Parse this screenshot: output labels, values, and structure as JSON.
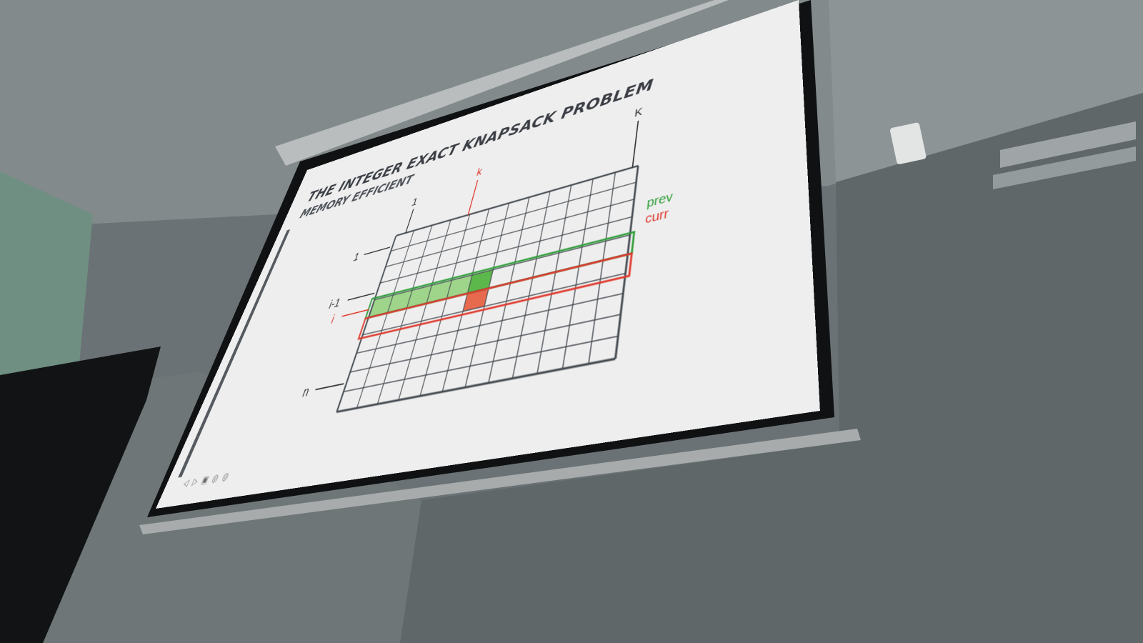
{
  "slide": {
    "title": "THE INTEGER EXACT KNAPSACK PROBLEM",
    "subtitle": "MEMORY EFFICIENT",
    "top_labels": [
      "1",
      "k",
      "K"
    ],
    "row_labels": [
      "1",
      "i-1",
      "i",
      "n"
    ],
    "legend": {
      "prev": "prev",
      "curr": "curr"
    },
    "nav_controls": "◁ ▷ ▣ ◎ ◎",
    "grid": {
      "rows": 10,
      "cols": 12,
      "prev_row": 4,
      "curr_row": 5,
      "k_col": 5
    }
  },
  "colors": {
    "prev": "#2f9e3a",
    "prev_fill": "#9fd58b",
    "prev_cell": "#5cb84a",
    "curr": "#e03a2f",
    "curr_cell": "#e86a4e",
    "grid": "#444a50"
  }
}
